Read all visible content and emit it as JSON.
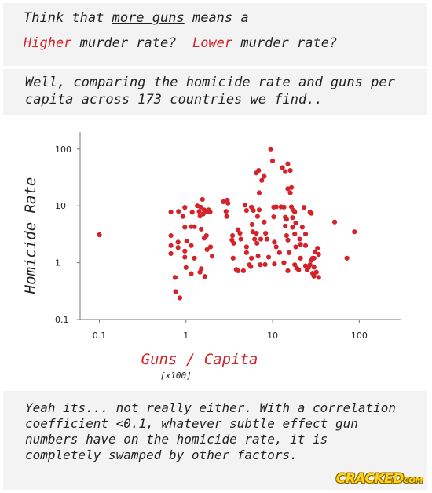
{
  "header": {
    "line1_a": "Think that ",
    "line1_b": "more guns",
    "line1_c": " means a",
    "line2_red1": "Higher",
    "line2_mid": " murder rate?  ",
    "line2_red2": "Lower",
    "line2_end": " murder rate?"
  },
  "intro": {
    "text": "Well, comparing the homicide rate and guns per capita across 173 countries we find.."
  },
  "conclusion": {
    "text": "Yeah its... not really either. With a correlation coefficient <0.1, whatever subtle effect gun numbers have on the homicide rate, it is completely swamped by other factors."
  },
  "logo": {
    "main": "CRACKED",
    "suffix": "COM"
  },
  "colors": {
    "point": "#d2242a",
    "axis": "#777777",
    "panel": "#f3f3f3"
  },
  "chart_data": {
    "type": "scatter",
    "xlabel": "Guns / Capita",
    "xlabel_sub": "[x100]",
    "ylabel": "Homicide Rate",
    "x_scale": "log",
    "y_scale": "log",
    "xlim": [
      0.06,
      300
    ],
    "ylim": [
      0.1,
      200
    ],
    "x_ticks": [
      {
        "value": 0.1,
        "label": "0.1"
      },
      {
        "value": 1,
        "label": "1"
      },
      {
        "value": 10,
        "label": "10"
      },
      {
        "value": 100,
        "label": "100"
      }
    ],
    "y_ticks": [
      {
        "value": 0.1,
        "label": "0.1"
      },
      {
        "value": 1,
        "label": "1"
      },
      {
        "value": 10,
        "label": "10"
      },
      {
        "value": 100,
        "label": "100"
      }
    ],
    "grid": false,
    "points": [
      {
        "x": 0.1,
        "y": 3.1
      },
      {
        "x": 0.67,
        "y": 7.8
      },
      {
        "x": 0.67,
        "y": 2.0
      },
      {
        "x": 0.67,
        "y": 3.0
      },
      {
        "x": 0.67,
        "y": 1.45
      },
      {
        "x": 0.75,
        "y": 0.55
      },
      {
        "x": 0.76,
        "y": 0.31
      },
      {
        "x": 0.82,
        "y": 8.0
      },
      {
        "x": 0.81,
        "y": 2.3
      },
      {
        "x": 0.81,
        "y": 1.85
      },
      {
        "x": 0.85,
        "y": 0.24
      },
      {
        "x": 0.92,
        "y": 6.5
      },
      {
        "x": 0.97,
        "y": 9.4
      },
      {
        "x": 0.97,
        "y": 4.2
      },
      {
        "x": 0.97,
        "y": 1.6
      },
      {
        "x": 0.97,
        "y": 1.25
      },
      {
        "x": 1.0,
        "y": 0.82
      },
      {
        "x": 1.02,
        "y": 2.4
      },
      {
        "x": 1.15,
        "y": 4.3
      },
      {
        "x": 1.15,
        "y": 2.0
      },
      {
        "x": 1.18,
        "y": 7.7
      },
      {
        "x": 1.15,
        "y": 0.64
      },
      {
        "x": 1.25,
        "y": 4.3
      },
      {
        "x": 1.25,
        "y": 1.2
      },
      {
        "x": 1.35,
        "y": 10.0
      },
      {
        "x": 1.42,
        "y": 8.0
      },
      {
        "x": 1.48,
        "y": 9.5
      },
      {
        "x": 1.55,
        "y": 13.0
      },
      {
        "x": 1.45,
        "y": 6.6
      },
      {
        "x": 1.62,
        "y": 8.5
      },
      {
        "x": 1.58,
        "y": 7.2
      },
      {
        "x": 1.5,
        "y": 3.9
      },
      {
        "x": 1.45,
        "y": 0.68
      },
      {
        "x": 1.5,
        "y": 0.78
      },
      {
        "x": 1.65,
        "y": 0.57
      },
      {
        "x": 1.75,
        "y": 7.8
      },
      {
        "x": 1.82,
        "y": 8.5
      },
      {
        "x": 1.9,
        "y": 7.8
      },
      {
        "x": 1.72,
        "y": 3.0
      },
      {
        "x": 1.62,
        "y": 2.7
      },
      {
        "x": 1.75,
        "y": 1.7
      },
      {
        "x": 1.92,
        "y": 1.9
      },
      {
        "x": 2.0,
        "y": 1.3
      },
      {
        "x": 2.7,
        "y": 11.8
      },
      {
        "x": 3.0,
        "y": 12.6
      },
      {
        "x": 3.05,
        "y": 11.2
      },
      {
        "x": 2.9,
        "y": 8.0
      },
      {
        "x": 2.95,
        "y": 6.5
      },
      {
        "x": 3.5,
        "y": 1.2
      },
      {
        "x": 3.45,
        "y": 3.0
      },
      {
        "x": 3.4,
        "y": 2.5
      },
      {
        "x": 3.55,
        "y": 2.2
      },
      {
        "x": 3.8,
        "y": 0.76
      },
      {
        "x": 4.0,
        "y": 3.8
      },
      {
        "x": 4.3,
        "y": 2.6
      },
      {
        "x": 4.2,
        "y": 3.3
      },
      {
        "x": 4.0,
        "y": 0.72
      },
      {
        "x": 4.6,
        "y": 0.72
      },
      {
        "x": 4.8,
        "y": 10.3
      },
      {
        "x": 5.0,
        "y": 8.3
      },
      {
        "x": 5.0,
        "y": 1.5
      },
      {
        "x": 5.0,
        "y": 1.9
      },
      {
        "x": 5.4,
        "y": 0.92
      },
      {
        "x": 5.7,
        "y": 1.2
      },
      {
        "x": 5.6,
        "y": 0.85
      },
      {
        "x": 5.7,
        "y": 9.5
      },
      {
        "x": 5.8,
        "y": 4.7
      },
      {
        "x": 5.9,
        "y": 3.5
      },
      {
        "x": 6.0,
        "y": 8.3
      },
      {
        "x": 6.2,
        "y": 2.6
      },
      {
        "x": 6.5,
        "y": 3.3
      },
      {
        "x": 6.7,
        "y": 6.5
      },
      {
        "x": 6.6,
        "y": 2.2
      },
      {
        "x": 7.0,
        "y": 8.5
      },
      {
        "x": 7.3,
        "y": 2.6
      },
      {
        "x": 6.8,
        "y": 1.3
      },
      {
        "x": 7.2,
        "y": 0.92
      },
      {
        "x": 6.5,
        "y": 38.0
      },
      {
        "x": 6.9,
        "y": 42.0
      },
      {
        "x": 7.5,
        "y": 28.0
      },
      {
        "x": 8.0,
        "y": 33.0
      },
      {
        "x": 7.0,
        "y": 17.0
      },
      {
        "x": 8.0,
        "y": 5.2
      },
      {
        "x": 8.3,
        "y": 3.3
      },
      {
        "x": 8.6,
        "y": 2.6
      },
      {
        "x": 8.2,
        "y": 0.93
      },
      {
        "x": 9.0,
        "y": 1.25
      },
      {
        "x": 9.5,
        "y": 100.0
      },
      {
        "x": 10.0,
        "y": 62.0
      },
      {
        "x": 10.3,
        "y": 9.5
      },
      {
        "x": 11.0,
        "y": 9.6
      },
      {
        "x": 10.3,
        "y": 6.4
      },
      {
        "x": 10.5,
        "y": 2.3
      },
      {
        "x": 10.5,
        "y": 0.95
      },
      {
        "x": 11.0,
        "y": 1.9
      },
      {
        "x": 12.0,
        "y": 1.5
      },
      {
        "x": 12.5,
        "y": 9.6
      },
      {
        "x": 13.5,
        "y": 9.5
      },
      {
        "x": 14.0,
        "y": 6.3
      },
      {
        "x": 14.0,
        "y": 4.4
      },
      {
        "x": 14.5,
        "y": 5.8
      },
      {
        "x": 14.5,
        "y": 3.0
      },
      {
        "x": 15.0,
        "y": 2.5
      },
      {
        "x": 13.5,
        "y": 1.0
      },
      {
        "x": 15.0,
        "y": 0.72
      },
      {
        "x": 15.5,
        "y": 1.5
      },
      {
        "x": 13.0,
        "y": 47.0
      },
      {
        "x": 14.0,
        "y": 40.0
      },
      {
        "x": 15.0,
        "y": 55.0
      },
      {
        "x": 16.0,
        "y": 42.0
      },
      {
        "x": 15.0,
        "y": 20.0
      },
      {
        "x": 16.0,
        "y": 17.0
      },
      {
        "x": 16.5,
        "y": 21.0
      },
      {
        "x": 16.5,
        "y": 9.6
      },
      {
        "x": 17.0,
        "y": 6.2
      },
      {
        "x": 17.5,
        "y": 8.3
      },
      {
        "x": 18.0,
        "y": 7.8
      },
      {
        "x": 17.0,
        "y": 4.2
      },
      {
        "x": 18.5,
        "y": 5.0
      },
      {
        "x": 18.0,
        "y": 3.2
      },
      {
        "x": 18.5,
        "y": 1.9
      },
      {
        "x": 18.0,
        "y": 0.92
      },
      {
        "x": 19.0,
        "y": 0.8
      },
      {
        "x": 20.0,
        "y": 0.75
      },
      {
        "x": 21.0,
        "y": 1.2
      },
      {
        "x": 20.5,
        "y": 2.6
      },
      {
        "x": 21.0,
        "y": 2.1
      },
      {
        "x": 23.0,
        "y": 9.4
      },
      {
        "x": 22.0,
        "y": 4.2
      },
      {
        "x": 24.0,
        "y": 3.2
      },
      {
        "x": 24.0,
        "y": 2.0
      },
      {
        "x": 24.0,
        "y": 0.88
      },
      {
        "x": 25.0,
        "y": 0.75
      },
      {
        "x": 26.0,
        "y": 0.82
      },
      {
        "x": 27.0,
        "y": 7.8
      },
      {
        "x": 28.0,
        "y": 7.4
      },
      {
        "x": 28.0,
        "y": 1.1
      },
      {
        "x": 27.0,
        "y": 0.92
      },
      {
        "x": 29.0,
        "y": 1.2
      },
      {
        "x": 30.0,
        "y": 1.2
      },
      {
        "x": 30.0,
        "y": 0.83
      },
      {
        "x": 31.0,
        "y": 1.55
      },
      {
        "x": 29.0,
        "y": 0.65
      },
      {
        "x": 30.0,
        "y": 0.58
      },
      {
        "x": 33.0,
        "y": 1.8
      },
      {
        "x": 34.0,
        "y": 1.4
      },
      {
        "x": 32.0,
        "y": 0.68
      },
      {
        "x": 34.0,
        "y": 0.55
      },
      {
        "x": 52.0,
        "y": 5.2
      },
      {
        "x": 72.0,
        "y": 1.2
      },
      {
        "x": 88.0,
        "y": 3.5
      }
    ]
  }
}
